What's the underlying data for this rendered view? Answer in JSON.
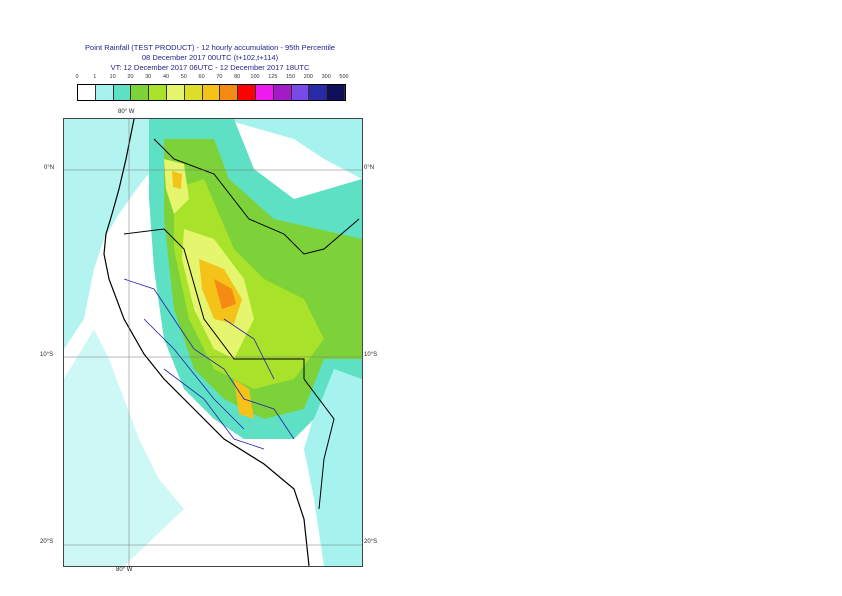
{
  "title": {
    "line1": "Point Rainfall (TEST PRODUCT) - 12 hourly accumulation - 95th Percentile",
    "line2": "08 December 2017 00UTC (t+102,t+114)",
    "line3": "VT: 12 December 2017 06UTC - 12 December 2017 18UTC"
  },
  "legend": {
    "ticks": [
      "0",
      "1",
      "10",
      "20",
      "30",
      "40",
      "50",
      "60",
      "70",
      "80",
      "100",
      "125",
      "150",
      "200",
      "300",
      "500"
    ],
    "colors": [
      "#ffffff",
      "#a6f2ee",
      "#5ee0c4",
      "#7dd23a",
      "#a8e22a",
      "#e6f56e",
      "#dede2a",
      "#f5c21a",
      "#f58a15",
      "#ff0000",
      "#ee1aee",
      "#a51ac8",
      "#7a4ae8",
      "#2a2aa8",
      "#0f0f5a"
    ]
  },
  "map": {
    "lon_label_top": "80° W",
    "lon_label_bottom": "80° W",
    "lat_labels_left": [
      "0°N",
      "10°S",
      "20°S"
    ],
    "lat_labels_right": [
      "0°N",
      "10°S",
      "20°S"
    ]
  }
}
